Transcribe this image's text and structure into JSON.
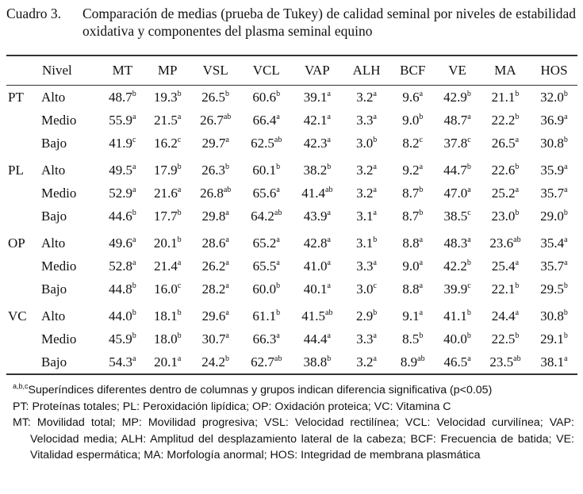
{
  "caption": {
    "label": "Cuadro 3.",
    "text": "Comparación de medias (prueba de Tukey) de calidad seminal por niveles de estabilidad oxidativa y componentes del plasma seminal equino"
  },
  "header": [
    "Nivel",
    "MT",
    "MP",
    "VSL",
    "VCL",
    "VAP",
    "ALH",
    "BCF",
    "VE",
    "MA",
    "HOS"
  ],
  "groups": [
    {
      "name": "PT",
      "rows": [
        {
          "level": "Alto",
          "cells": [
            [
              "48.7",
              "b"
            ],
            [
              "19.3",
              "b"
            ],
            [
              "26.5",
              "b"
            ],
            [
              "60.6",
              "b"
            ],
            [
              "39.1",
              "a"
            ],
            [
              "3.2",
              "a"
            ],
            [
              "9.6",
              "a"
            ],
            [
              "42.9",
              "b"
            ],
            [
              "21.1",
              "b"
            ],
            [
              "32.0",
              "b"
            ]
          ]
        },
        {
          "level": "Medio",
          "cells": [
            [
              "55.9",
              "a"
            ],
            [
              "21.5",
              "a"
            ],
            [
              "26.7",
              "ab"
            ],
            [
              "66.4",
              "a"
            ],
            [
              "42.1",
              "a"
            ],
            [
              "3.3",
              "a"
            ],
            [
              "9.0",
              "b"
            ],
            [
              "48.7",
              "a"
            ],
            [
              "22.2",
              "b"
            ],
            [
              "36.9",
              "a"
            ]
          ]
        },
        {
          "level": "Bajo",
          "cells": [
            [
              "41.9",
              "c"
            ],
            [
              "16.2",
              "c"
            ],
            [
              "29.7",
              "a"
            ],
            [
              "62.5",
              "ab"
            ],
            [
              "42.3",
              "a"
            ],
            [
              "3.0",
              "b"
            ],
            [
              "8.2",
              "c"
            ],
            [
              "37.8",
              "c"
            ],
            [
              "26.5",
              "a"
            ],
            [
              "30.8",
              "b"
            ]
          ]
        }
      ]
    },
    {
      "name": "PL",
      "rows": [
        {
          "level": "Alto",
          "cells": [
            [
              "49.5",
              "a"
            ],
            [
              "17.9",
              "b"
            ],
            [
              "26.3",
              "b"
            ],
            [
              "60.1",
              "b"
            ],
            [
              "38.2",
              "b"
            ],
            [
              "3.2",
              "a"
            ],
            [
              "9.2",
              "a"
            ],
            [
              "44.7",
              "b"
            ],
            [
              "22.6",
              "b"
            ],
            [
              "35.9",
              "a"
            ]
          ]
        },
        {
          "level": "Medio",
          "cells": [
            [
              "52.9",
              "a"
            ],
            [
              "21.6",
              "a"
            ],
            [
              "26.8",
              "ab"
            ],
            [
              "65.6",
              "a"
            ],
            [
              "41.4",
              "ab"
            ],
            [
              "3.2",
              "a"
            ],
            [
              "8.7",
              "b"
            ],
            [
              "47.0",
              "a"
            ],
            [
              "25.2",
              "a"
            ],
            [
              "35.7",
              "a"
            ]
          ]
        },
        {
          "level": "Bajo",
          "cells": [
            [
              "44.6",
              "b"
            ],
            [
              "17.7",
              "b"
            ],
            [
              "29.8",
              "a"
            ],
            [
              "64.2",
              "ab"
            ],
            [
              "43.9",
              "a"
            ],
            [
              "3.1",
              "a"
            ],
            [
              "8.7",
              "b"
            ],
            [
              "38.5",
              "c"
            ],
            [
              "23.0",
              "b"
            ],
            [
              "29.0",
              "b"
            ]
          ]
        }
      ]
    },
    {
      "name": "OP",
      "rows": [
        {
          "level": "Alto",
          "cells": [
            [
              "49.6",
              "a"
            ],
            [
              "20.1",
              "b"
            ],
            [
              "28.6",
              "a"
            ],
            [
              "65.2",
              "a"
            ],
            [
              "42.8",
              "a"
            ],
            [
              "3.1",
              "b"
            ],
            [
              "8.8",
              "a"
            ],
            [
              "48.3",
              "a"
            ],
            [
              "23.6",
              "ab"
            ],
            [
              "35.4",
              "a"
            ]
          ]
        },
        {
          "level": "Medio",
          "cells": [
            [
              "52.8",
              "a"
            ],
            [
              "21.4",
              "a"
            ],
            [
              "26.2",
              "a"
            ],
            [
              "65.5",
              "a"
            ],
            [
              "41.0",
              "a"
            ],
            [
              "3.3",
              "a"
            ],
            [
              "9.0",
              "a"
            ],
            [
              "42.2",
              "b"
            ],
            [
              "25.4",
              "a"
            ],
            [
              "35.7",
              "a"
            ]
          ]
        },
        {
          "level": "Bajo",
          "cells": [
            [
              "44.8",
              "b"
            ],
            [
              "16.0",
              "c"
            ],
            [
              "28.2",
              "a"
            ],
            [
              "60.0",
              "b"
            ],
            [
              "40.1",
              "a"
            ],
            [
              "3.0",
              "c"
            ],
            [
              "8.8",
              "a"
            ],
            [
              "39.9",
              "c"
            ],
            [
              "22.1",
              "b"
            ],
            [
              "29.5",
              "b"
            ]
          ]
        }
      ]
    },
    {
      "name": "VC",
      "rows": [
        {
          "level": "Alto",
          "cells": [
            [
              "44.0",
              "b"
            ],
            [
              "18.1",
              "b"
            ],
            [
              "29.6",
              "a"
            ],
            [
              "61.1",
              "b"
            ],
            [
              "41.5",
              "ab"
            ],
            [
              "2.9",
              "b"
            ],
            [
              "9.1",
              "a"
            ],
            [
              "41.1",
              "b"
            ],
            [
              "24.4",
              "a"
            ],
            [
              "30.8",
              "b"
            ]
          ]
        },
        {
          "level": "Medio",
          "cells": [
            [
              "45.9",
              "b"
            ],
            [
              "18.0",
              "b"
            ],
            [
              "30.7",
              "a"
            ],
            [
              "66.3",
              "a"
            ],
            [
              "44.4",
              "a"
            ],
            [
              "3.3",
              "a"
            ],
            [
              "8.5",
              "b"
            ],
            [
              "40.0",
              "b"
            ],
            [
              "22.5",
              "b"
            ],
            [
              "29.1",
              "b"
            ]
          ]
        },
        {
          "level": "Bajo",
          "cells": [
            [
              "54.3",
              "a"
            ],
            [
              "20.1",
              "a"
            ],
            [
              "24.2",
              "b"
            ],
            [
              "62.7",
              "ab"
            ],
            [
              "38.8",
              "b"
            ],
            [
              "3.2",
              "a"
            ],
            [
              "8.9",
              "ab"
            ],
            [
              "46.5",
              "a"
            ],
            [
              "23.5",
              "ab"
            ],
            [
              "38.1",
              "a"
            ]
          ]
        }
      ]
    }
  ],
  "footnotes": {
    "sup": "a,b,c",
    "significance": "Superíndices diferentes dentro de columnas y grupos indican diferencia significativa (p<0.05)",
    "groups": "PT: Proteínas totales; PL: Peroxidación lipídica; OP: Oxidación proteica; VC: Vitamina C",
    "variables": "MT: Movilidad total; MP: Movilidad progresiva; VSL: Velocidad rectilínea; VCL: Velocidad curvilínea; VAP: Velocidad media; ALH: Amplitud del desplazamiento lateral de la cabeza; BCF: Frecuencia de batida; VE: Vitalidad espermática; MA: Morfología anormal; HOS: Integridad de membrana plasmática"
  }
}
